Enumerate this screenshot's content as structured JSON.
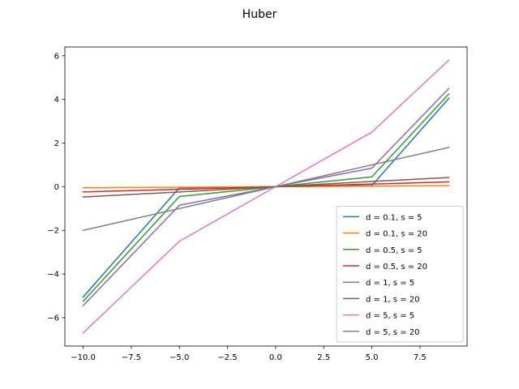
{
  "chart_data": {
    "type": "line",
    "title": "Huber",
    "xlabel": "",
    "ylabel": "",
    "x": [
      -10,
      -5,
      0,
      5,
      9
    ],
    "xlim": [
      -10.95,
      9.95
    ],
    "ylim": [
      -7.3,
      6.4
    ],
    "xticks": [
      -10.0,
      -7.5,
      -5.0,
      -2.5,
      0.0,
      2.5,
      5.0,
      7.5
    ],
    "xtick_labels": [
      "−10.0",
      "−7.5",
      "−5.0",
      "−2.5",
      "0.0",
      "2.5",
      "5.0",
      "7.5"
    ],
    "yticks": [
      -6,
      -4,
      -2,
      0,
      2,
      4,
      6
    ],
    "ytick_labels": [
      "−6",
      "−4",
      "−2",
      "0",
      "2",
      "4",
      "6"
    ],
    "grid": false,
    "legend_position": "lower-right",
    "series": [
      {
        "name": "d = 0.1, s = 5",
        "color": "#1f77b4",
        "values": [
          -5.05,
          -0.05,
          0,
          0.05,
          4.05
        ]
      },
      {
        "name": "d = 0.1, s = 20",
        "color": "#ff7f0e",
        "values": [
          -0.05,
          -0.025,
          0,
          0.025,
          0.05
        ]
      },
      {
        "name": "d = 0.5, s = 5",
        "color": "#2ca02c",
        "values": [
          -5.25,
          -0.45,
          0,
          0.45,
          4.25
        ]
      },
      {
        "name": "d = 0.5, s = 20",
        "color": "#d62728",
        "values": [
          -0.24,
          -0.12,
          0,
          0.12,
          0.22
        ]
      },
      {
        "name": "d = 1, s = 5",
        "color": "#9467bd",
        "values": [
          -5.45,
          -0.85,
          0,
          0.85,
          4.5
        ]
      },
      {
        "name": "d = 1, s = 20",
        "color": "#8c564b",
        "values": [
          -0.47,
          -0.24,
          0,
          0.24,
          0.42
        ]
      },
      {
        "name": "d = 5, s = 5",
        "color": "#e377c2",
        "values": [
          -6.7,
          -2.5,
          0,
          2.5,
          5.8
        ]
      },
      {
        "name": "d = 5, s = 20",
        "color": "#7f7f7f",
        "values": [
          -2.0,
          -1.0,
          0,
          1.0,
          1.8
        ]
      }
    ]
  }
}
